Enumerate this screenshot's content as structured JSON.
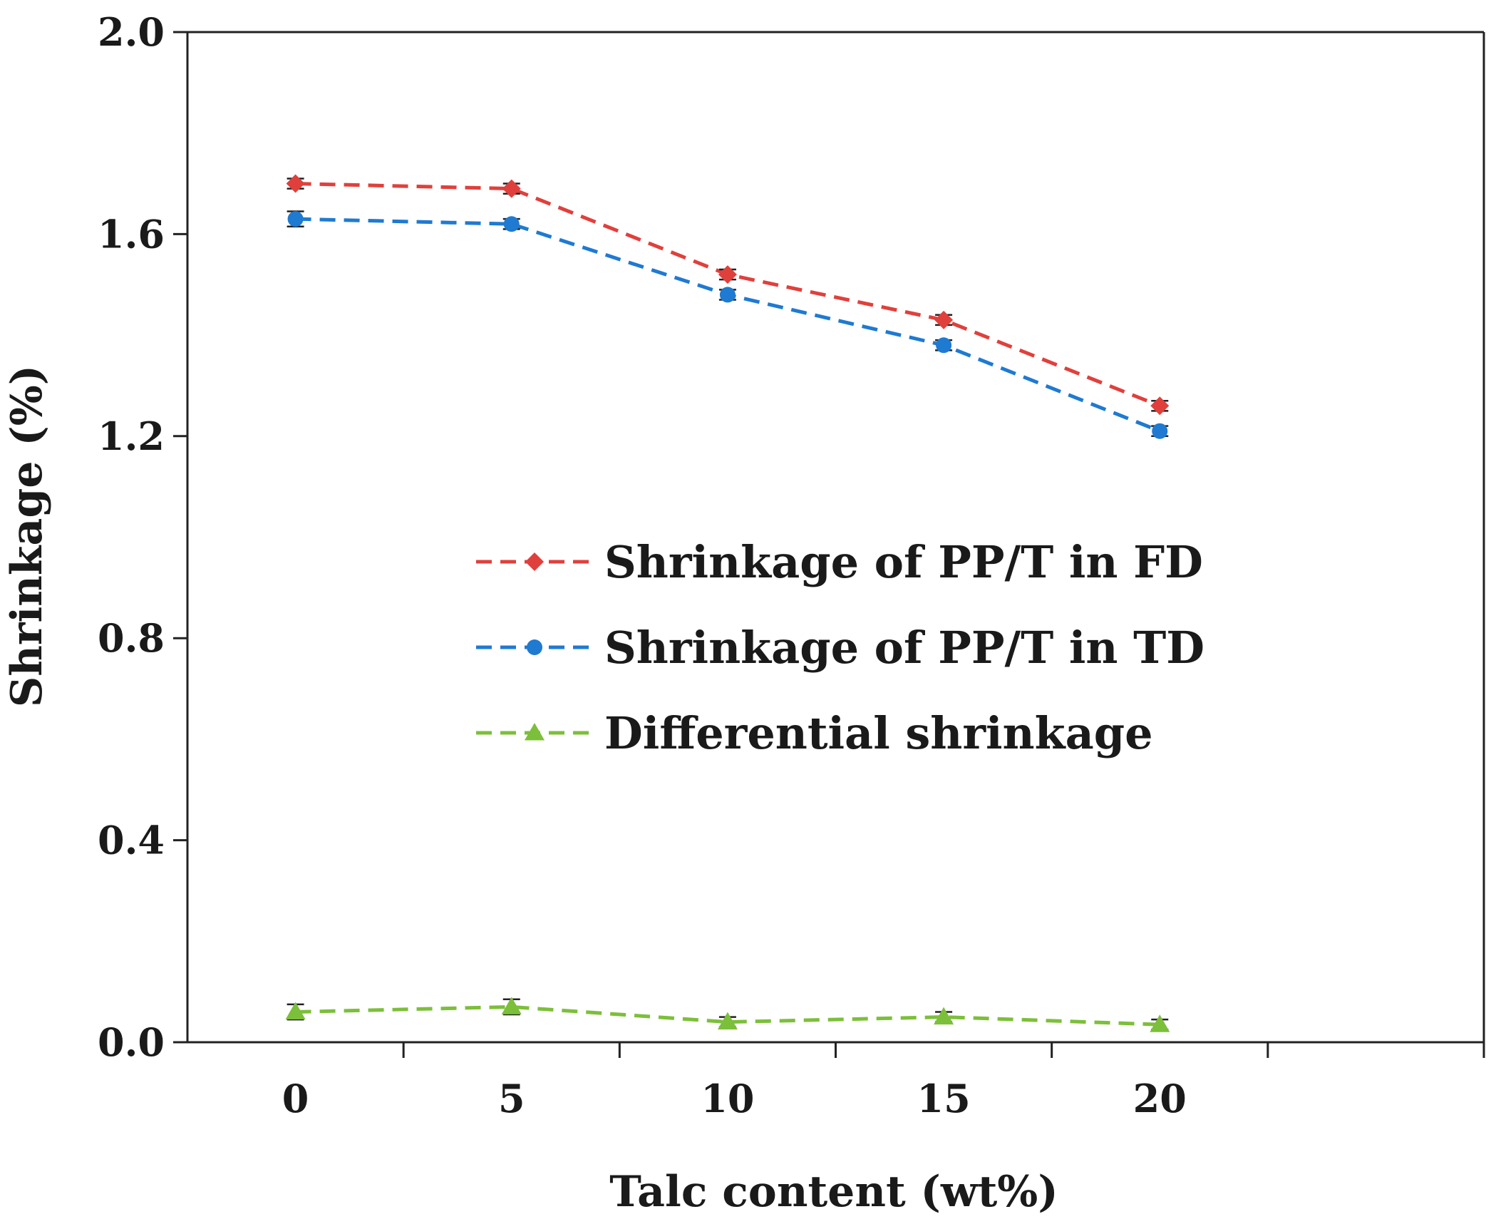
{
  "chart_data": {
    "type": "line",
    "title": "",
    "xlabel": "Talc content (wt%)",
    "ylabel": "Shrinkage (%)",
    "categories": [
      "0",
      "5",
      "10",
      "15",
      "20"
    ],
    "ylim": [
      0,
      2.0
    ],
    "yticks": [
      "0.0",
      "0.4",
      "0.8",
      "1.2",
      "1.6",
      "2.0"
    ],
    "grid": false,
    "legend_position": "center-right",
    "series": [
      {
        "name": "Shrinkage of PP/T in FD",
        "values": [
          1.7,
          1.69,
          1.52,
          1.43,
          1.26
        ],
        "errors": [
          0.01,
          0.01,
          0.01,
          0.01,
          0.01
        ],
        "color": "#e0403c",
        "marker": "diamond",
        "line_style": "dashed"
      },
      {
        "name": "Shrinkage of PP/T in TD",
        "values": [
          1.63,
          1.62,
          1.48,
          1.38,
          1.21
        ],
        "errors": [
          0.015,
          0.01,
          0.01,
          0.01,
          0.01
        ],
        "color": "#1f7ad1",
        "marker": "circle",
        "line_style": "dashed"
      },
      {
        "name": "Differential shrinkage",
        "values": [
          0.06,
          0.07,
          0.04,
          0.05,
          0.035
        ],
        "errors": [
          0.015,
          0.015,
          0.01,
          0.01,
          0.01
        ],
        "color": "#7cbf3a",
        "marker": "triangle",
        "line_style": "dashed"
      }
    ]
  }
}
